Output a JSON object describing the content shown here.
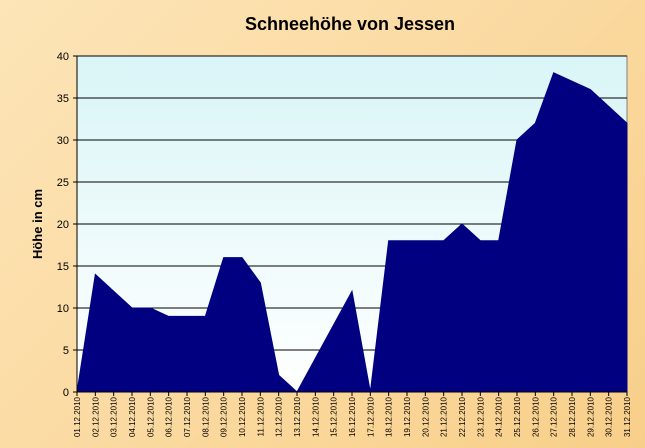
{
  "chart_data": {
    "type": "area",
    "title": "Schneehöhe von Jessen",
    "xlabel": "",
    "ylabel": "Höhe in cm",
    "ylim": [
      0,
      40
    ],
    "yticks": [
      0,
      5,
      10,
      15,
      20,
      25,
      30,
      35,
      40
    ],
    "grid": true,
    "legend": "none",
    "colors": {
      "area": "#000080",
      "plot_bg_top": "#d9f5f7",
      "plot_bg_bottom": "#ffffff",
      "background": "#fbd89e"
    },
    "categories": [
      "01.12.2010",
      "02.12.2010",
      "03.12.2010",
      "04.12.2010",
      "05.12.2010",
      "06.12.2010",
      "07.12.2010",
      "08.12.2010",
      "09.12.2010",
      "10.12.2010",
      "11.12.2010",
      "12.12.2010",
      "13.12.2010",
      "14.12.2010",
      "15.12.2010",
      "16.12.2010",
      "17.12.2010",
      "18.12.2010",
      "19.12.2010",
      "20.12.2010",
      "21.12.2010",
      "22.12.2010",
      "23.12.2010",
      "24.12.2010",
      "25.12.2010",
      "26.12.2010",
      "27.12.2010",
      "28.12.2010",
      "29.12.2010",
      "30.12.2010",
      "31.12.2010"
    ],
    "values": [
      0,
      14,
      12,
      10,
      10,
      9,
      9,
      9,
      16,
      16,
      13,
      2,
      0,
      4,
      8,
      12,
      0,
      18,
      18,
      18,
      18,
      20,
      18,
      18,
      30,
      32,
      38,
      37,
      36,
      34,
      32
    ]
  }
}
